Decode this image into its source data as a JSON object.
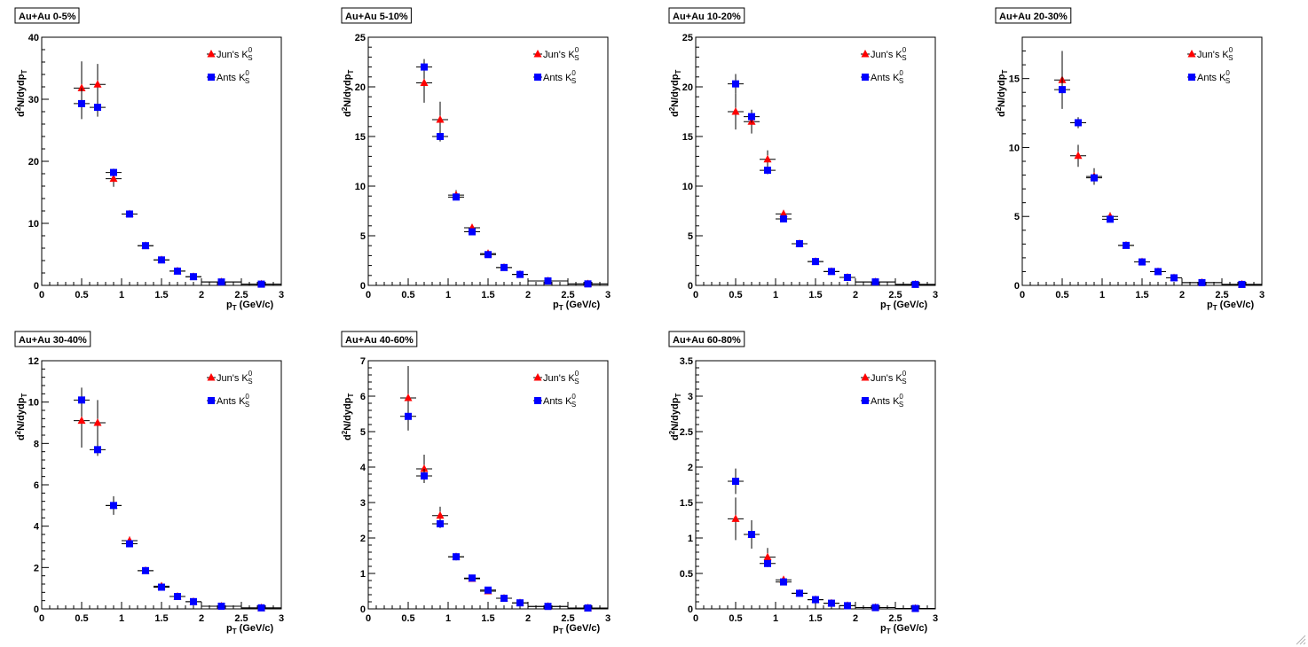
{
  "legend": {
    "series_a_prefix": "Jun's K",
    "series_b_prefix": "Ants K",
    "sub": "S",
    "sup": "0"
  },
  "axis": {
    "x_label_main": "p",
    "x_label_sub": "T",
    "x_label_unit": " (GeV/c)",
    "y_label_sup": "2",
    "y_label_a": "d",
    "y_label_b": "N/dydp",
    "y_label_sub": "T"
  },
  "colors": {
    "series_a": "#ff0000",
    "series_b": "#0000ff",
    "axis": "#000000",
    "background": "#ffffff"
  },
  "chart_data": [
    {
      "type": "scatter",
      "title": "Au+Au 0-5%",
      "xlim": [
        0,
        3
      ],
      "ylim": [
        0,
        40
      ],
      "xticks": [
        "0",
        "0.5",
        "1",
        "1.5",
        "2",
        "2.5",
        "3"
      ],
      "yticks": [
        "0",
        "10",
        "20",
        "30",
        "40"
      ],
      "series": [
        {
          "name": "Jun's K_S^0",
          "marker": "triangle",
          "x": [
            0.5,
            0.7,
            0.9,
            1.1,
            1.3,
            1.5,
            1.7,
            1.9,
            2.25,
            2.75
          ],
          "xerr": [
            0.1,
            0.1,
            0.1,
            0.1,
            0.1,
            0.1,
            0.1,
            0.1,
            0.25,
            0.25
          ],
          "y": [
            31.8,
            32.4,
            17.2,
            11.5,
            6.4,
            4.1,
            2.3,
            1.4,
            0.55,
            0.2
          ],
          "yerr": [
            4.3,
            3.3,
            1.3,
            0.5,
            0.3,
            0.2,
            0.15,
            0.1,
            0.05,
            0.03
          ]
        },
        {
          "name": "Ants K_S^0",
          "marker": "square",
          "x": [
            0.5,
            0.7,
            0.9,
            1.1,
            1.3,
            1.5,
            1.7,
            1.9,
            2.25,
            2.75
          ],
          "xerr": [
            0.1,
            0.1,
            0.1,
            0.1,
            0.1,
            0.1,
            0.1,
            0.1,
            0.25,
            0.25
          ],
          "y": [
            29.3,
            28.7,
            18.2,
            11.5,
            6.4,
            4.1,
            2.3,
            1.4,
            0.55,
            0.2
          ],
          "yerr": [
            2.5,
            1.5,
            0.6,
            0.3,
            0.2,
            0.1,
            0.1,
            0.05,
            0.03,
            0.02
          ]
        }
      ]
    },
    {
      "type": "scatter",
      "title": "Au+Au 5-10%",
      "xlim": [
        0,
        3
      ],
      "ylim": [
        0,
        25
      ],
      "xticks": [
        "0",
        "0.5",
        "1",
        "1.5",
        "2",
        "2.5",
        "3"
      ],
      "yticks": [
        "0",
        "5",
        "10",
        "15",
        "20",
        "25"
      ],
      "series": [
        {
          "name": "Jun's K_S^0",
          "marker": "triangle",
          "x": [
            0.7,
            0.9,
            1.1,
            1.3,
            1.5,
            1.7,
            1.9,
            2.25,
            2.75
          ],
          "xerr": [
            0.1,
            0.1,
            0.1,
            0.1,
            0.1,
            0.1,
            0.1,
            0.25,
            0.25
          ],
          "y": [
            20.4,
            16.7,
            9.1,
            5.8,
            3.2,
            1.8,
            1.1,
            0.45,
            0.15
          ],
          "yerr": [
            2.0,
            1.8,
            0.5,
            0.3,
            0.2,
            0.1,
            0.08,
            0.04,
            0.02
          ]
        },
        {
          "name": "Ants K_S^0",
          "marker": "square",
          "x": [
            0.7,
            0.9,
            1.1,
            1.3,
            1.5,
            1.7,
            1.9,
            2.25,
            2.75
          ],
          "xerr": [
            0.1,
            0.1,
            0.1,
            0.1,
            0.1,
            0.1,
            0.1,
            0.25,
            0.25
          ],
          "y": [
            22.0,
            15.0,
            8.9,
            5.4,
            3.1,
            1.8,
            1.1,
            0.45,
            0.15
          ],
          "yerr": [
            0.8,
            0.5,
            0.3,
            0.2,
            0.1,
            0.08,
            0.05,
            0.03,
            0.02
          ]
        }
      ]
    },
    {
      "type": "scatter",
      "title": "Au+Au 10-20%",
      "xlim": [
        0,
        3
      ],
      "ylim": [
        0,
        25
      ],
      "xticks": [
        "0",
        "0.5",
        "1",
        "1.5",
        "2",
        "2.5",
        "3"
      ],
      "yticks": [
        "0",
        "5",
        "10",
        "15",
        "20",
        "25"
      ],
      "series": [
        {
          "name": "Jun's K_S^0",
          "marker": "triangle",
          "x": [
            0.5,
            0.7,
            0.9,
            1.1,
            1.3,
            1.5,
            1.7,
            1.9,
            2.25,
            2.75
          ],
          "xerr": [
            0.1,
            0.1,
            0.1,
            0.1,
            0.1,
            0.1,
            0.1,
            0.1,
            0.25,
            0.25
          ],
          "y": [
            17.5,
            16.5,
            12.7,
            7.2,
            4.2,
            2.4,
            1.4,
            0.8,
            0.35,
            0.1
          ],
          "yerr": [
            1.8,
            1.2,
            0.9,
            0.4,
            0.25,
            0.15,
            0.1,
            0.06,
            0.04,
            0.02
          ]
        },
        {
          "name": "Ants K_S^0",
          "marker": "square",
          "x": [
            0.5,
            0.7,
            0.9,
            1.1,
            1.3,
            1.5,
            1.7,
            1.9,
            2.25,
            2.75
          ],
          "xerr": [
            0.1,
            0.1,
            0.1,
            0.1,
            0.1,
            0.1,
            0.1,
            0.1,
            0.25,
            0.25
          ],
          "y": [
            20.3,
            17.0,
            11.6,
            6.7,
            4.2,
            2.4,
            1.4,
            0.8,
            0.35,
            0.1
          ],
          "yerr": [
            1.0,
            0.6,
            0.4,
            0.25,
            0.15,
            0.1,
            0.07,
            0.05,
            0.03,
            0.02
          ]
        }
      ]
    },
    {
      "type": "scatter",
      "title": "Au+Au 20-30%",
      "xlim": [
        0,
        3
      ],
      "ylim": [
        0,
        18
      ],
      "xticks": [
        "0",
        "0.5",
        "1",
        "1.5",
        "2",
        "2.5",
        "3"
      ],
      "yticks": [
        "0",
        "5",
        "10",
        "15"
      ],
      "series": [
        {
          "name": "Jun's K_S^0",
          "marker": "triangle",
          "x": [
            0.5,
            0.7,
            0.9,
            1.1,
            1.3,
            1.5,
            1.7,
            1.9,
            2.25,
            2.75
          ],
          "xerr": [
            0.1,
            0.1,
            0.1,
            0.1,
            0.1,
            0.1,
            0.1,
            0.1,
            0.25,
            0.25
          ],
          "y": [
            14.9,
            9.4,
            7.9,
            5.0,
            2.9,
            1.7,
            1.0,
            0.55,
            0.2,
            0.07
          ],
          "yerr": [
            2.1,
            0.8,
            0.6,
            0.3,
            0.15,
            0.1,
            0.07,
            0.05,
            0.03,
            0.02
          ]
        },
        {
          "name": "Ants K_S^0",
          "marker": "square",
          "x": [
            0.5,
            0.7,
            0.9,
            1.1,
            1.3,
            1.5,
            1.7,
            1.9,
            2.25,
            2.75
          ],
          "xerr": [
            0.1,
            0.1,
            0.1,
            0.1,
            0.1,
            0.1,
            0.1,
            0.1,
            0.25,
            0.25
          ],
          "y": [
            14.2,
            11.8,
            7.8,
            4.8,
            2.9,
            1.7,
            1.0,
            0.55,
            0.2,
            0.07
          ],
          "yerr": [
            1.0,
            0.4,
            0.3,
            0.2,
            0.1,
            0.07,
            0.05,
            0.03,
            0.02,
            0.01
          ]
        }
      ]
    },
    {
      "type": "scatter",
      "title": "Au+Au 30-40%",
      "xlim": [
        0,
        3
      ],
      "ylim": [
        0,
        12
      ],
      "xticks": [
        "0",
        "0.5",
        "1",
        "1.5",
        "2",
        "2.5",
        "3"
      ],
      "yticks": [
        "0",
        "2",
        "4",
        "6",
        "8",
        "10",
        "12"
      ],
      "series": [
        {
          "name": "Jun's K_S^0",
          "marker": "triangle",
          "x": [
            0.5,
            0.7,
            0.9,
            1.1,
            1.3,
            1.5,
            1.7,
            1.9,
            2.25,
            2.75
          ],
          "xerr": [
            0.1,
            0.1,
            0.1,
            0.1,
            0.1,
            0.1,
            0.1,
            0.1,
            0.25,
            0.25
          ],
          "y": [
            9.1,
            9.0,
            5.0,
            3.3,
            1.85,
            1.1,
            0.6,
            0.35,
            0.13,
            0.05
          ],
          "yerr": [
            1.3,
            1.1,
            0.45,
            0.2,
            0.1,
            0.07,
            0.04,
            0.03,
            0.02,
            0.01
          ]
        },
        {
          "name": "Ants K_S^0",
          "marker": "square",
          "x": [
            0.5,
            0.7,
            0.9,
            1.1,
            1.3,
            1.5,
            1.7,
            1.9,
            2.25,
            2.75
          ],
          "xerr": [
            0.1,
            0.1,
            0.1,
            0.1,
            0.1,
            0.1,
            0.1,
            0.1,
            0.25,
            0.25
          ],
          "y": [
            10.1,
            7.7,
            5.0,
            3.15,
            1.85,
            1.05,
            0.6,
            0.35,
            0.13,
            0.05
          ],
          "yerr": [
            0.6,
            0.3,
            0.2,
            0.12,
            0.07,
            0.05,
            0.03,
            0.02,
            0.01,
            0.01
          ]
        }
      ]
    },
    {
      "type": "scatter",
      "title": "Au+Au 40-60%",
      "xlim": [
        0,
        3
      ],
      "ylim": [
        0,
        7
      ],
      "xticks": [
        "0",
        "0.5",
        "1",
        "1.5",
        "2",
        "2.5",
        "3"
      ],
      "yticks": [
        "0",
        "1",
        "2",
        "3",
        "4",
        "5",
        "6",
        "7"
      ],
      "series": [
        {
          "name": "Jun's K_S^0",
          "marker": "triangle",
          "x": [
            0.5,
            0.7,
            0.9,
            1.1,
            1.3,
            1.5,
            1.7,
            1.9,
            2.25,
            2.75
          ],
          "xerr": [
            0.1,
            0.1,
            0.1,
            0.1,
            0.1,
            0.1,
            0.1,
            0.1,
            0.25,
            0.25
          ],
          "y": [
            5.95,
            3.95,
            2.63,
            1.47,
            0.85,
            0.5,
            0.3,
            0.17,
            0.07,
            0.025
          ],
          "yerr": [
            0.9,
            0.4,
            0.25,
            0.1,
            0.06,
            0.04,
            0.02,
            0.015,
            0.01,
            0.005
          ]
        },
        {
          "name": "Ants K_S^0",
          "marker": "square",
          "x": [
            0.5,
            0.7,
            0.9,
            1.1,
            1.3,
            1.5,
            1.7,
            1.9,
            2.25,
            2.75
          ],
          "xerr": [
            0.1,
            0.1,
            0.1,
            0.1,
            0.1,
            0.1,
            0.1,
            0.1,
            0.25,
            0.25
          ],
          "y": [
            5.43,
            3.75,
            2.4,
            1.47,
            0.87,
            0.53,
            0.3,
            0.17,
            0.07,
            0.025
          ],
          "yerr": [
            0.4,
            0.2,
            0.12,
            0.07,
            0.04,
            0.03,
            0.02,
            0.01,
            0.007,
            0.004
          ]
        }
      ]
    },
    {
      "type": "scatter",
      "title": "Au+Au 60-80%",
      "xlim": [
        0,
        3
      ],
      "ylim": [
        0,
        3.5
      ],
      "xticks": [
        "0",
        "0.5",
        "1",
        "1.5",
        "2",
        "2.5",
        "3"
      ],
      "yticks": [
        "0",
        "0.5",
        "1",
        "1.5",
        "2",
        "2.5",
        "3",
        "3.5"
      ],
      "series": [
        {
          "name": "Jun's K_S^0",
          "marker": "triangle",
          "x": [
            0.5,
            0.7,
            0.9,
            1.1,
            1.3,
            1.5,
            1.7,
            1.9,
            2.25,
            2.75
          ],
          "xerr": [
            0.1,
            0.1,
            0.1,
            0.1,
            0.1,
            0.1,
            0.1,
            0.1,
            0.25,
            0.25
          ],
          "y": [
            1.27,
            1.05,
            0.73,
            0.41,
            0.22,
            0.13,
            0.08,
            0.045,
            0.018,
            0.006
          ],
          "yerr": [
            0.3,
            0.2,
            0.13,
            0.05,
            0.03,
            0.02,
            0.01,
            0.008,
            0.004,
            0.002
          ]
        },
        {
          "name": "Ants K_S^0",
          "marker": "square",
          "x": [
            0.5,
            0.7,
            0.9,
            1.1,
            1.3,
            1.5,
            1.7,
            1.9,
            2.25,
            2.75
          ],
          "xerr": [
            0.1,
            0.1,
            0.1,
            0.1,
            0.1,
            0.1,
            0.1,
            0.1,
            0.25,
            0.25
          ],
          "y": [
            1.8,
            1.05,
            0.64,
            0.38,
            0.22,
            0.13,
            0.08,
            0.045,
            0.018,
            0.006
          ],
          "yerr": [
            0.18,
            0.08,
            0.05,
            0.03,
            0.02,
            0.01,
            0.008,
            0.005,
            0.003,
            0.002
          ]
        }
      ]
    }
  ]
}
